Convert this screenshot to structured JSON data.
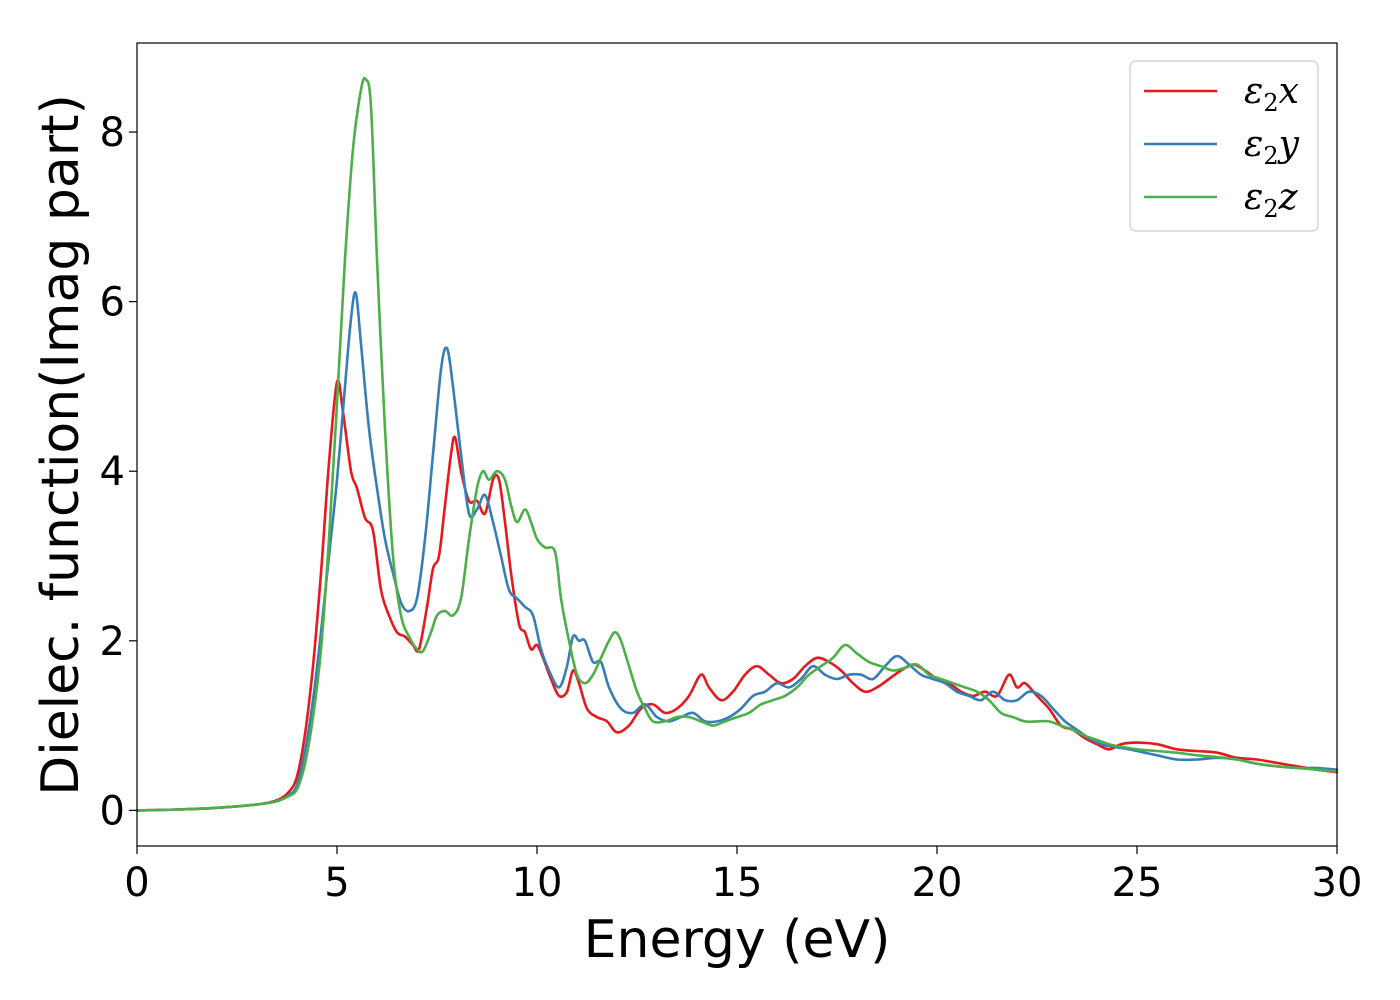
{
  "chart_data": {
    "type": "line",
    "xlabel": "Energy (eV)",
    "ylabel": "Dielec. function(Imag part)",
    "xlim": [
      0,
      30
    ],
    "ylim": [
      -0.42,
      9.05
    ],
    "xticks": [
      0,
      5,
      10,
      15,
      20,
      25,
      30
    ],
    "yticks": [
      0,
      2,
      4,
      6,
      8
    ],
    "xtick_labels": [
      "0",
      "5",
      "10",
      "15",
      "20",
      "25",
      "30"
    ],
    "ytick_labels": [
      "0",
      "2",
      "4",
      "6",
      "8"
    ],
    "grid": false,
    "legend_position": "top-right",
    "series": [
      {
        "name": "ε2x",
        "symbol": "ε",
        "subscript": "2",
        "suffix": "x",
        "color": "#e41a1c",
        "points": [
          [
            0,
            0.0
          ],
          [
            1,
            0.01
          ],
          [
            2,
            0.03
          ],
          [
            3,
            0.07
          ],
          [
            3.5,
            0.12
          ],
          [
            3.8,
            0.22
          ],
          [
            4.0,
            0.4
          ],
          [
            4.2,
            0.9
          ],
          [
            4.4,
            1.7
          ],
          [
            4.6,
            2.8
          ],
          [
            4.8,
            4.1
          ],
          [
            5.0,
            5.05
          ],
          [
            5.15,
            4.7
          ],
          [
            5.35,
            4.0
          ],
          [
            5.5,
            3.8
          ],
          [
            5.7,
            3.45
          ],
          [
            5.9,
            3.3
          ],
          [
            6.1,
            2.6
          ],
          [
            6.3,
            2.3
          ],
          [
            6.5,
            2.1
          ],
          [
            6.7,
            2.05
          ],
          [
            6.9,
            1.95
          ],
          [
            7.05,
            1.9
          ],
          [
            7.25,
            2.4
          ],
          [
            7.4,
            2.85
          ],
          [
            7.55,
            3.0
          ],
          [
            7.7,
            3.6
          ],
          [
            7.85,
            4.2
          ],
          [
            7.95,
            4.4
          ],
          [
            8.1,
            4.0
          ],
          [
            8.3,
            3.65
          ],
          [
            8.5,
            3.65
          ],
          [
            8.7,
            3.5
          ],
          [
            8.9,
            3.9
          ],
          [
            9.05,
            3.9
          ],
          [
            9.2,
            3.4
          ],
          [
            9.35,
            2.8
          ],
          [
            9.55,
            2.2
          ],
          [
            9.7,
            2.1
          ],
          [
            9.85,
            1.9
          ],
          [
            10.0,
            1.95
          ],
          [
            10.15,
            1.8
          ],
          [
            10.35,
            1.55
          ],
          [
            10.55,
            1.35
          ],
          [
            10.75,
            1.4
          ],
          [
            10.9,
            1.65
          ],
          [
            11.05,
            1.5
          ],
          [
            11.25,
            1.2
          ],
          [
            11.5,
            1.1
          ],
          [
            11.75,
            1.05
          ],
          [
            12.0,
            0.92
          ],
          [
            12.3,
            1.0
          ],
          [
            12.6,
            1.2
          ],
          [
            12.9,
            1.25
          ],
          [
            13.2,
            1.15
          ],
          [
            13.5,
            1.2
          ],
          [
            13.8,
            1.35
          ],
          [
            14.1,
            1.6
          ],
          [
            14.3,
            1.45
          ],
          [
            14.6,
            1.3
          ],
          [
            14.9,
            1.4
          ],
          [
            15.2,
            1.6
          ],
          [
            15.5,
            1.7
          ],
          [
            15.8,
            1.6
          ],
          [
            16.1,
            1.5
          ],
          [
            16.4,
            1.55
          ],
          [
            16.7,
            1.7
          ],
          [
            17.0,
            1.8
          ],
          [
            17.3,
            1.75
          ],
          [
            17.6,
            1.65
          ],
          [
            17.9,
            1.5
          ],
          [
            18.2,
            1.4
          ],
          [
            18.5,
            1.45
          ],
          [
            18.8,
            1.55
          ],
          [
            19.1,
            1.65
          ],
          [
            19.4,
            1.72
          ],
          [
            19.7,
            1.65
          ],
          [
            20.0,
            1.55
          ],
          [
            20.3,
            1.5
          ],
          [
            20.6,
            1.4
          ],
          [
            20.9,
            1.35
          ],
          [
            21.2,
            1.4
          ],
          [
            21.5,
            1.35
          ],
          [
            21.8,
            1.6
          ],
          [
            22.0,
            1.45
          ],
          [
            22.2,
            1.5
          ],
          [
            22.5,
            1.35
          ],
          [
            22.8,
            1.2
          ],
          [
            23.1,
            1.0
          ],
          [
            23.4,
            0.95
          ],
          [
            23.7,
            0.85
          ],
          [
            24.0,
            0.78
          ],
          [
            24.3,
            0.72
          ],
          [
            24.6,
            0.78
          ],
          [
            25.0,
            0.8
          ],
          [
            25.5,
            0.78
          ],
          [
            26.0,
            0.72
          ],
          [
            26.5,
            0.7
          ],
          [
            27.0,
            0.68
          ],
          [
            27.5,
            0.62
          ],
          [
            28.0,
            0.6
          ],
          [
            28.5,
            0.56
          ],
          [
            29.0,
            0.52
          ],
          [
            29.5,
            0.48
          ],
          [
            30.0,
            0.45
          ]
        ]
      },
      {
        "name": "ε2y",
        "symbol": "ε",
        "subscript": "2",
        "suffix": "y",
        "color": "#377eb8",
        "points": [
          [
            0,
            0.0
          ],
          [
            1,
            0.01
          ],
          [
            2,
            0.03
          ],
          [
            3,
            0.07
          ],
          [
            3.5,
            0.11
          ],
          [
            3.8,
            0.18
          ],
          [
            4.0,
            0.3
          ],
          [
            4.2,
            0.7
          ],
          [
            4.4,
            1.3
          ],
          [
            4.6,
            2.1
          ],
          [
            4.8,
            3.0
          ],
          [
            5.0,
            3.9
          ],
          [
            5.2,
            5.0
          ],
          [
            5.35,
            5.8
          ],
          [
            5.47,
            6.1
          ],
          [
            5.6,
            5.5
          ],
          [
            5.8,
            4.5
          ],
          [
            6.0,
            3.8
          ],
          [
            6.2,
            3.2
          ],
          [
            6.4,
            2.8
          ],
          [
            6.6,
            2.45
          ],
          [
            6.8,
            2.35
          ],
          [
            7.0,
            2.5
          ],
          [
            7.2,
            3.2
          ],
          [
            7.4,
            4.2
          ],
          [
            7.6,
            5.2
          ],
          [
            7.75,
            5.45
          ],
          [
            7.9,
            5.0
          ],
          [
            8.1,
            4.2
          ],
          [
            8.3,
            3.5
          ],
          [
            8.5,
            3.55
          ],
          [
            8.7,
            3.72
          ],
          [
            8.9,
            3.4
          ],
          [
            9.1,
            3.0
          ],
          [
            9.3,
            2.6
          ],
          [
            9.5,
            2.5
          ],
          [
            9.7,
            2.4
          ],
          [
            9.9,
            2.3
          ],
          [
            10.1,
            1.9
          ],
          [
            10.3,
            1.65
          ],
          [
            10.55,
            1.45
          ],
          [
            10.75,
            1.7
          ],
          [
            10.9,
            2.05
          ],
          [
            11.05,
            2.0
          ],
          [
            11.2,
            2.0
          ],
          [
            11.4,
            1.75
          ],
          [
            11.6,
            1.75
          ],
          [
            11.8,
            1.45
          ],
          [
            12.1,
            1.2
          ],
          [
            12.4,
            1.15
          ],
          [
            12.7,
            1.25
          ],
          [
            13.0,
            1.1
          ],
          [
            13.3,
            1.05
          ],
          [
            13.6,
            1.1
          ],
          [
            13.9,
            1.15
          ],
          [
            14.2,
            1.05
          ],
          [
            14.5,
            1.05
          ],
          [
            14.8,
            1.1
          ],
          [
            15.1,
            1.2
          ],
          [
            15.4,
            1.35
          ],
          [
            15.7,
            1.4
          ],
          [
            16.0,
            1.5
          ],
          [
            16.3,
            1.45
          ],
          [
            16.6,
            1.55
          ],
          [
            16.9,
            1.7
          ],
          [
            17.2,
            1.6
          ],
          [
            17.5,
            1.55
          ],
          [
            17.8,
            1.6
          ],
          [
            18.1,
            1.6
          ],
          [
            18.4,
            1.55
          ],
          [
            18.7,
            1.7
          ],
          [
            19.0,
            1.82
          ],
          [
            19.3,
            1.72
          ],
          [
            19.6,
            1.6
          ],
          [
            19.9,
            1.55
          ],
          [
            20.2,
            1.5
          ],
          [
            20.5,
            1.4
          ],
          [
            20.8,
            1.35
          ],
          [
            21.1,
            1.3
          ],
          [
            21.4,
            1.4
          ],
          [
            21.7,
            1.3
          ],
          [
            22.0,
            1.3
          ],
          [
            22.3,
            1.4
          ],
          [
            22.6,
            1.35
          ],
          [
            22.9,
            1.2
          ],
          [
            23.2,
            1.05
          ],
          [
            23.5,
            0.95
          ],
          [
            23.8,
            0.85
          ],
          [
            24.1,
            0.78
          ],
          [
            24.4,
            0.75
          ],
          [
            24.7,
            0.73
          ],
          [
            25.0,
            0.7
          ],
          [
            25.5,
            0.65
          ],
          [
            26.0,
            0.6
          ],
          [
            26.5,
            0.6
          ],
          [
            27.0,
            0.62
          ],
          [
            27.5,
            0.6
          ],
          [
            28.0,
            0.55
          ],
          [
            28.5,
            0.52
          ],
          [
            29.0,
            0.5
          ],
          [
            29.5,
            0.5
          ],
          [
            30.0,
            0.48
          ]
        ]
      },
      {
        "name": "ε2z",
        "symbol": "ε",
        "subscript": "2",
        "suffix": "z",
        "color": "#4daf4a",
        "points": [
          [
            0,
            0.0
          ],
          [
            1,
            0.01
          ],
          [
            2,
            0.03
          ],
          [
            3,
            0.07
          ],
          [
            3.5,
            0.11
          ],
          [
            3.8,
            0.17
          ],
          [
            4.0,
            0.25
          ],
          [
            4.2,
            0.55
          ],
          [
            4.4,
            1.1
          ],
          [
            4.6,
            1.9
          ],
          [
            4.8,
            3.2
          ],
          [
            5.0,
            4.8
          ],
          [
            5.2,
            6.5
          ],
          [
            5.4,
            7.8
          ],
          [
            5.6,
            8.5
          ],
          [
            5.72,
            8.62
          ],
          [
            5.85,
            8.3
          ],
          [
            6.0,
            6.5
          ],
          [
            6.2,
            4.5
          ],
          [
            6.4,
            3.0
          ],
          [
            6.6,
            2.3
          ],
          [
            6.8,
            2.05
          ],
          [
            7.0,
            1.9
          ],
          [
            7.15,
            1.88
          ],
          [
            7.35,
            2.1
          ],
          [
            7.5,
            2.3
          ],
          [
            7.7,
            2.35
          ],
          [
            7.9,
            2.3
          ],
          [
            8.1,
            2.5
          ],
          [
            8.3,
            3.2
          ],
          [
            8.5,
            3.8
          ],
          [
            8.65,
            4.0
          ],
          [
            8.8,
            3.9
          ],
          [
            9.0,
            4.0
          ],
          [
            9.2,
            3.9
          ],
          [
            9.35,
            3.6
          ],
          [
            9.5,
            3.4
          ],
          [
            9.7,
            3.55
          ],
          [
            9.85,
            3.4
          ],
          [
            10.0,
            3.2
          ],
          [
            10.2,
            3.1
          ],
          [
            10.45,
            3.05
          ],
          [
            10.6,
            2.5
          ],
          [
            10.8,
            2.0
          ],
          [
            11.0,
            1.6
          ],
          [
            11.2,
            1.5
          ],
          [
            11.4,
            1.6
          ],
          [
            11.6,
            1.8
          ],
          [
            11.8,
            2.0
          ],
          [
            11.95,
            2.1
          ],
          [
            12.1,
            2.0
          ],
          [
            12.3,
            1.7
          ],
          [
            12.5,
            1.4
          ],
          [
            12.7,
            1.2
          ],
          [
            12.9,
            1.05
          ],
          [
            13.2,
            1.05
          ],
          [
            13.5,
            1.1
          ],
          [
            13.8,
            1.1
          ],
          [
            14.1,
            1.05
          ],
          [
            14.4,
            1.0
          ],
          [
            14.7,
            1.05
          ],
          [
            15.0,
            1.1
          ],
          [
            15.3,
            1.15
          ],
          [
            15.6,
            1.25
          ],
          [
            15.9,
            1.3
          ],
          [
            16.2,
            1.35
          ],
          [
            16.5,
            1.45
          ],
          [
            16.8,
            1.6
          ],
          [
            17.1,
            1.7
          ],
          [
            17.4,
            1.8
          ],
          [
            17.7,
            1.95
          ],
          [
            18.0,
            1.85
          ],
          [
            18.3,
            1.75
          ],
          [
            18.6,
            1.7
          ],
          [
            18.9,
            1.65
          ],
          [
            19.2,
            1.68
          ],
          [
            19.5,
            1.72
          ],
          [
            19.8,
            1.6
          ],
          [
            20.1,
            1.55
          ],
          [
            20.4,
            1.5
          ],
          [
            20.7,
            1.45
          ],
          [
            21.0,
            1.4
          ],
          [
            21.3,
            1.3
          ],
          [
            21.6,
            1.15
          ],
          [
            21.9,
            1.1
          ],
          [
            22.2,
            1.05
          ],
          [
            22.5,
            1.05
          ],
          [
            22.8,
            1.05
          ],
          [
            23.1,
            1.0
          ],
          [
            23.4,
            0.95
          ],
          [
            23.7,
            0.88
          ],
          [
            24.0,
            0.83
          ],
          [
            24.3,
            0.78
          ],
          [
            24.6,
            0.75
          ],
          [
            25.0,
            0.72
          ],
          [
            25.5,
            0.7
          ],
          [
            26.0,
            0.68
          ],
          [
            26.5,
            0.65
          ],
          [
            27.0,
            0.63
          ],
          [
            27.5,
            0.6
          ],
          [
            28.0,
            0.55
          ],
          [
            28.5,
            0.52
          ],
          [
            29.0,
            0.5
          ],
          [
            29.5,
            0.48
          ],
          [
            30.0,
            0.46
          ]
        ]
      }
    ]
  }
}
